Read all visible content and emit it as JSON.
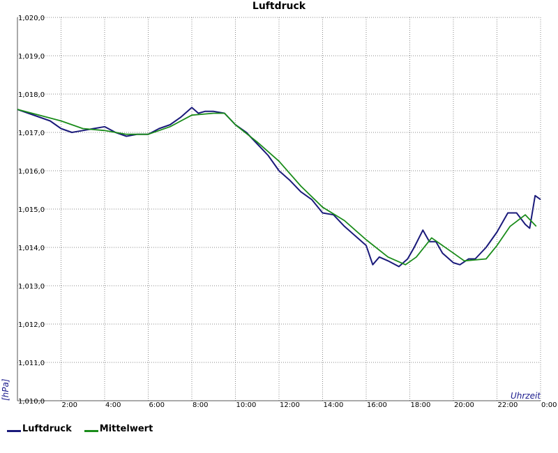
{
  "chart_data": {
    "type": "line",
    "title": "Luftdruck",
    "xlabel": "Uhrzeit",
    "ylabel": "[hPa]",
    "ylim": [
      1010.0,
      1020.0
    ],
    "xlim": [
      "0:00",
      "24:00"
    ],
    "y_ticks": [
      "1,010,0",
      "1,011,0",
      "1,012,0",
      "1,013,0",
      "1,014,0",
      "1,015,0",
      "1,016,0",
      "1,017,0",
      "1,018,0",
      "1,019,0",
      "1,020,0"
    ],
    "x_ticks": [
      "2:00",
      "4:00",
      "6:00",
      "8:00",
      "10:00",
      "12:00",
      "14:00",
      "16:00",
      "18:00",
      "20:00",
      "22:00",
      "0:00"
    ],
    "grid": true,
    "legend_position": "bottom-left",
    "series": [
      {
        "name": "Luftdruck",
        "color": "#1a1a7a",
        "x": [
          0.0,
          0.5,
          1.0,
          1.5,
          2.0,
          2.5,
          3.0,
          3.5,
          4.0,
          4.5,
          5.0,
          5.5,
          6.0,
          6.5,
          7.0,
          7.5,
          8.0,
          8.3,
          8.6,
          9.0,
          9.5,
          10.0,
          10.5,
          11.0,
          11.5,
          12.0,
          12.5,
          13.0,
          13.5,
          14.0,
          14.5,
          15.0,
          15.5,
          16.0,
          16.3,
          16.6,
          17.0,
          17.5,
          17.9,
          18.2,
          18.6,
          18.9,
          19.2,
          19.5,
          20.0,
          20.3,
          20.7,
          21.0,
          21.5,
          22.0,
          22.5,
          22.9,
          23.3,
          23.5,
          23.75,
          24.0
        ],
        "y": [
          1017.6,
          1017.5,
          1017.4,
          1017.3,
          1017.1,
          1017.0,
          1017.05,
          1017.1,
          1017.15,
          1017.0,
          1016.9,
          1016.95,
          1016.95,
          1017.1,
          1017.2,
          1017.4,
          1017.65,
          1017.5,
          1017.55,
          1017.55,
          1017.5,
          1017.2,
          1017.0,
          1016.7,
          1016.4,
          1016.0,
          1015.75,
          1015.45,
          1015.25,
          1014.9,
          1014.85,
          1014.55,
          1014.3,
          1014.05,
          1013.55,
          1013.75,
          1013.65,
          1013.5,
          1013.7,
          1014.0,
          1014.45,
          1014.15,
          1014.15,
          1013.85,
          1013.6,
          1013.55,
          1013.7,
          1013.7,
          1014.0,
          1014.4,
          1014.9,
          1014.9,
          1014.6,
          1014.5,
          1015.35,
          1015.25
        ]
      },
      {
        "name": "Mittelwert",
        "color": "#1a8c1a",
        "x": [
          0.0,
          1.0,
          2.0,
          3.0,
          4.0,
          5.0,
          6.0,
          7.0,
          8.0,
          9.0,
          9.5,
          10.0,
          11.0,
          12.0,
          13.0,
          14.0,
          15.0,
          16.0,
          17.0,
          17.8,
          18.3,
          19.0,
          20.0,
          20.5,
          21.5,
          22.0,
          22.6,
          23.3,
          23.8
        ],
        "y": [
          1017.6,
          1017.45,
          1017.3,
          1017.1,
          1017.05,
          1016.95,
          1016.95,
          1017.15,
          1017.45,
          1017.5,
          1017.5,
          1017.2,
          1016.75,
          1016.25,
          1015.6,
          1015.05,
          1014.7,
          1014.2,
          1013.75,
          1013.55,
          1013.75,
          1014.25,
          1013.85,
          1013.65,
          1013.7,
          1014.05,
          1014.55,
          1014.85,
          1014.55
        ]
      }
    ]
  }
}
